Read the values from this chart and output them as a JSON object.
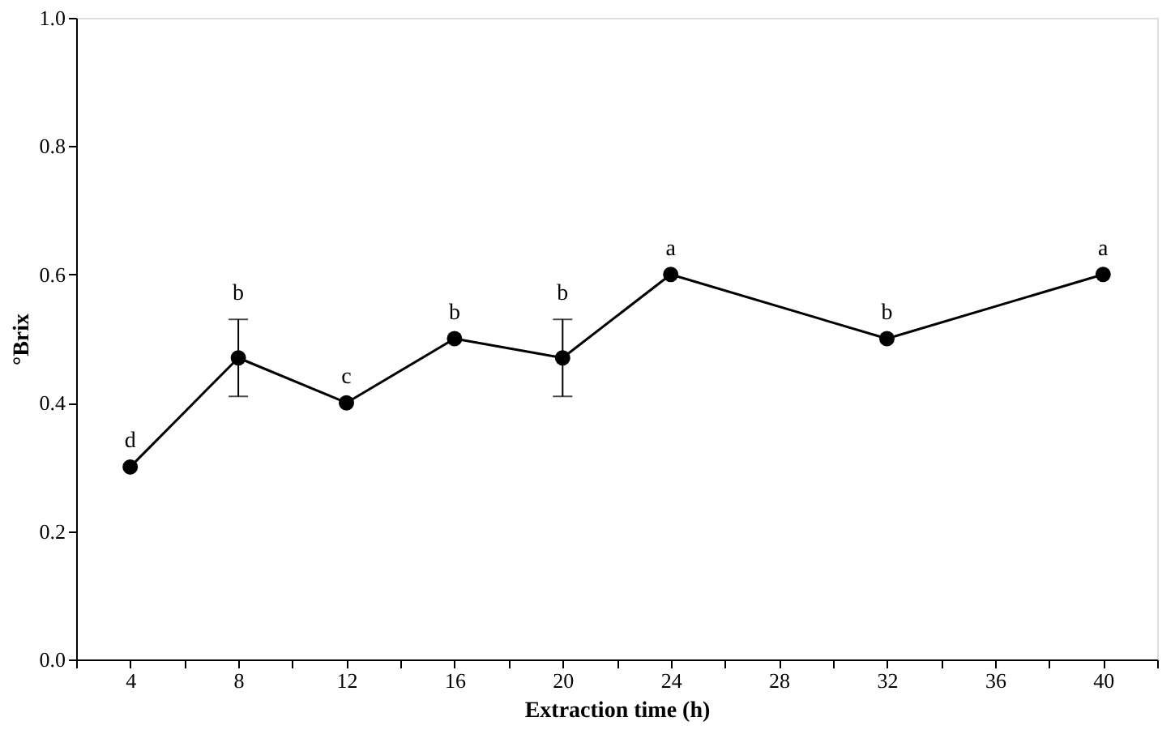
{
  "chart_data": {
    "type": "line",
    "xlabel": "Extraction time (h)",
    "ylabel": "°Brix",
    "x": [
      4,
      8,
      12,
      16,
      20,
      24,
      32,
      40
    ],
    "series": [
      {
        "color": "#000000",
        "values": [
          0.3,
          0.47,
          0.4,
          0.5,
          0.47,
          0.6,
          0.5,
          0.6
        ],
        "errors": [
          null,
          0.06,
          null,
          null,
          0.06,
          null,
          null,
          null
        ]
      }
    ],
    "xlim": [
      2,
      42
    ],
    "xticks": [
      {
        "value": 2,
        "label": null
      },
      4,
      {
        "value": 6,
        "label": null
      },
      8,
      {
        "value": 10,
        "label": null
      },
      12,
      {
        "value": 14,
        "label": null
      },
      16,
      {
        "value": 18,
        "label": null
      },
      20,
      {
        "value": 22,
        "label": null
      },
      24,
      {
        "value": 26,
        "label": null
      },
      28,
      {
        "value": 30,
        "label": null
      },
      32,
      {
        "value": 34,
        "label": null
      },
      36,
      {
        "value": 38,
        "label": null
      },
      40,
      {
        "value": 42,
        "label": null
      }
    ],
    "ylim": [
      0,
      1
    ],
    "yticks": [
      {
        "value": 0,
        "label": "0.0"
      },
      {
        "value": 0.2,
        "label": "0.2"
      },
      {
        "value": 0.4,
        "label": "0.4"
      },
      {
        "value": 0.6,
        "label": "0.6"
      },
      {
        "value": 0.8,
        "label": "0.8"
      },
      {
        "value": 1.0,
        "label": "1.0"
      }
    ],
    "annotations": [
      {
        "text": "d",
        "x": 4,
        "y": 0.3
      },
      {
        "text": "b",
        "x": 8,
        "y": 0.53
      },
      {
        "text": "c",
        "x": 12,
        "y": 0.4
      },
      {
        "text": "b",
        "x": 16,
        "y": 0.5
      },
      {
        "text": "b",
        "x": 20,
        "y": 0.53
      },
      {
        "text": "a",
        "x": 24,
        "y": 0.6
      },
      {
        "text": "b",
        "x": 32,
        "y": 0.5
      },
      {
        "text": "a",
        "x": 40,
        "y": 0.6
      }
    ],
    "marker": "circle",
    "line_style": "solid",
    "grid": false
  }
}
